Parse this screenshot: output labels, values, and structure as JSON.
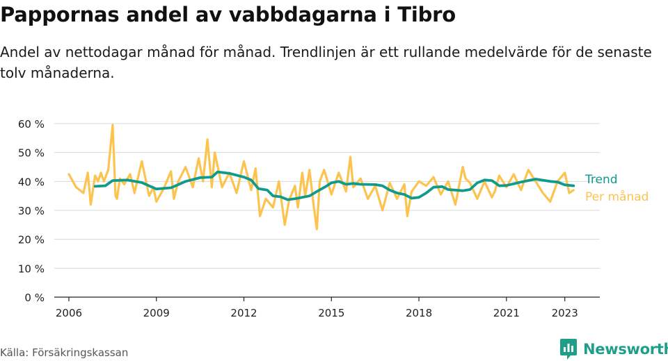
{
  "header": {
    "title": "Pappornas andel av vabbdagarna i Tibro",
    "subtitle": "Andel av nettodagar månad för månad. Trendlinjen är ett rullande medelvärde för de senaste tolv månaderna."
  },
  "footer": {
    "source": "Källa: Försäkringskassan",
    "brand": "Newsworthy",
    "brand_color": "#1f9e89",
    "brand_icon": "bar-chart-speech-bubble-icon"
  },
  "chart_data": {
    "type": "line",
    "title": "Pappornas andel av vabbdagarna i Tibro",
    "xlabel": "",
    "ylabel": "",
    "xlim": [
      2005.5,
      2024.2
    ],
    "ylim": [
      0,
      60
    ],
    "grid": true,
    "legend": "right",
    "y_ticks": [
      0,
      10,
      20,
      30,
      40,
      50,
      60
    ],
    "y_tick_labels": [
      "0 %",
      "10 %",
      "20 %",
      "30 %",
      "40 %",
      "50 %",
      "60 %"
    ],
    "x_ticks": [
      2006,
      2009,
      2012,
      2015,
      2018,
      2021,
      2023
    ],
    "x_tick_labels": [
      "2006",
      "2009",
      "2012",
      "2015",
      "2018",
      "2021",
      "2023"
    ],
    "series": [
      {
        "name": "Per månad",
        "color": "#fcc44e",
        "x": [
          2006.0,
          2006.25,
          2006.5,
          2006.65,
          2006.75,
          2006.9,
          2007.0,
          2007.1,
          2007.2,
          2007.35,
          2007.5,
          2007.6,
          2007.65,
          2007.75,
          2007.9,
          2008.1,
          2008.25,
          2008.5,
          2008.75,
          2008.9,
          2009.0,
          2009.25,
          2009.5,
          2009.6,
          2009.75,
          2010.0,
          2010.25,
          2010.45,
          2010.6,
          2010.75,
          2010.9,
          2011.0,
          2011.25,
          2011.5,
          2011.75,
          2012.0,
          2012.25,
          2012.4,
          2012.55,
          2012.75,
          2013.0,
          2013.2,
          2013.4,
          2013.55,
          2013.75,
          2013.85,
          2014.0,
          2014.1,
          2014.25,
          2014.4,
          2014.5,
          2014.6,
          2014.75,
          2015.0,
          2015.25,
          2015.5,
          2015.65,
          2015.75,
          2016.0,
          2016.25,
          2016.5,
          2016.75,
          2017.0,
          2017.25,
          2017.5,
          2017.6,
          2017.75,
          2018.0,
          2018.25,
          2018.5,
          2018.75,
          2019.0,
          2019.25,
          2019.5,
          2019.6,
          2019.75,
          2020.0,
          2020.25,
          2020.5,
          2020.6,
          2020.75,
          2021.0,
          2021.25,
          2021.5,
          2021.75,
          2022.0,
          2022.25,
          2022.5,
          2022.75,
          2023.0,
          2023.15,
          2023.3
        ],
        "y": [
          42.5,
          38,
          36,
          43,
          32,
          42,
          40,
          43,
          40,
          44,
          59.5,
          35,
          34,
          41,
          39,
          42.5,
          36,
          47,
          35,
          38,
          33,
          37.5,
          43.5,
          34,
          40,
          45,
          38,
          48,
          40,
          54.5,
          38,
          50,
          38,
          43,
          36,
          47,
          37,
          44.5,
          28,
          34,
          31,
          40,
          25,
          33.5,
          38.5,
          31,
          43,
          35,
          44,
          31,
          23.5,
          40,
          44,
          35.5,
          43,
          36.5,
          48.5,
          38,
          41,
          34,
          38.5,
          30,
          39.5,
          34,
          39,
          28,
          36.5,
          40,
          38.5,
          41.5,
          35.5,
          40,
          32,
          45,
          41,
          39.5,
          34,
          40,
          34.5,
          36.5,
          42,
          38,
          42.5,
          37,
          44,
          40,
          36,
          33,
          40,
          43,
          36,
          37
        ]
      },
      {
        "name": "Trend",
        "color": "#0f9a8c",
        "x": [
          2006.9,
          2007.25,
          2007.5,
          2008.0,
          2008.5,
          2009.0,
          2009.5,
          2010.0,
          2010.5,
          2010.9,
          2011.1,
          2011.5,
          2012.0,
          2012.25,
          2012.5,
          2012.8,
          2013.0,
          2013.25,
          2013.5,
          2013.75,
          2014.0,
          2014.25,
          2014.5,
          2014.8,
          2015.0,
          2015.25,
          2015.5,
          2015.75,
          2016.0,
          2016.5,
          2016.75,
          2017.0,
          2017.25,
          2017.5,
          2017.75,
          2018.0,
          2018.25,
          2018.5,
          2018.8,
          2019.0,
          2019.5,
          2019.75,
          2020.0,
          2020.25,
          2020.5,
          2020.75,
          2021.0,
          2021.5,
          2022.0,
          2022.5,
          2022.75,
          2023.0,
          2023.3
        ],
        "y": [
          38.3,
          38.5,
          40.3,
          40.5,
          39.6,
          37.4,
          37.8,
          40.0,
          41.3,
          41.5,
          43.3,
          42.8,
          41.5,
          40.5,
          37.5,
          37.0,
          35.0,
          34.7,
          33.7,
          34.0,
          34.5,
          35.0,
          36.5,
          38.2,
          39.5,
          40.0,
          39.0,
          39.3,
          39.0,
          38.9,
          38.5,
          37.0,
          36.0,
          35.5,
          34.2,
          34.5,
          36.0,
          38.0,
          38.2,
          37.2,
          36.8,
          37.2,
          39.5,
          40.5,
          40.3,
          38.5,
          38.6,
          39.8,
          40.8,
          40.0,
          39.8,
          38.8,
          38.5
        ]
      }
    ]
  }
}
